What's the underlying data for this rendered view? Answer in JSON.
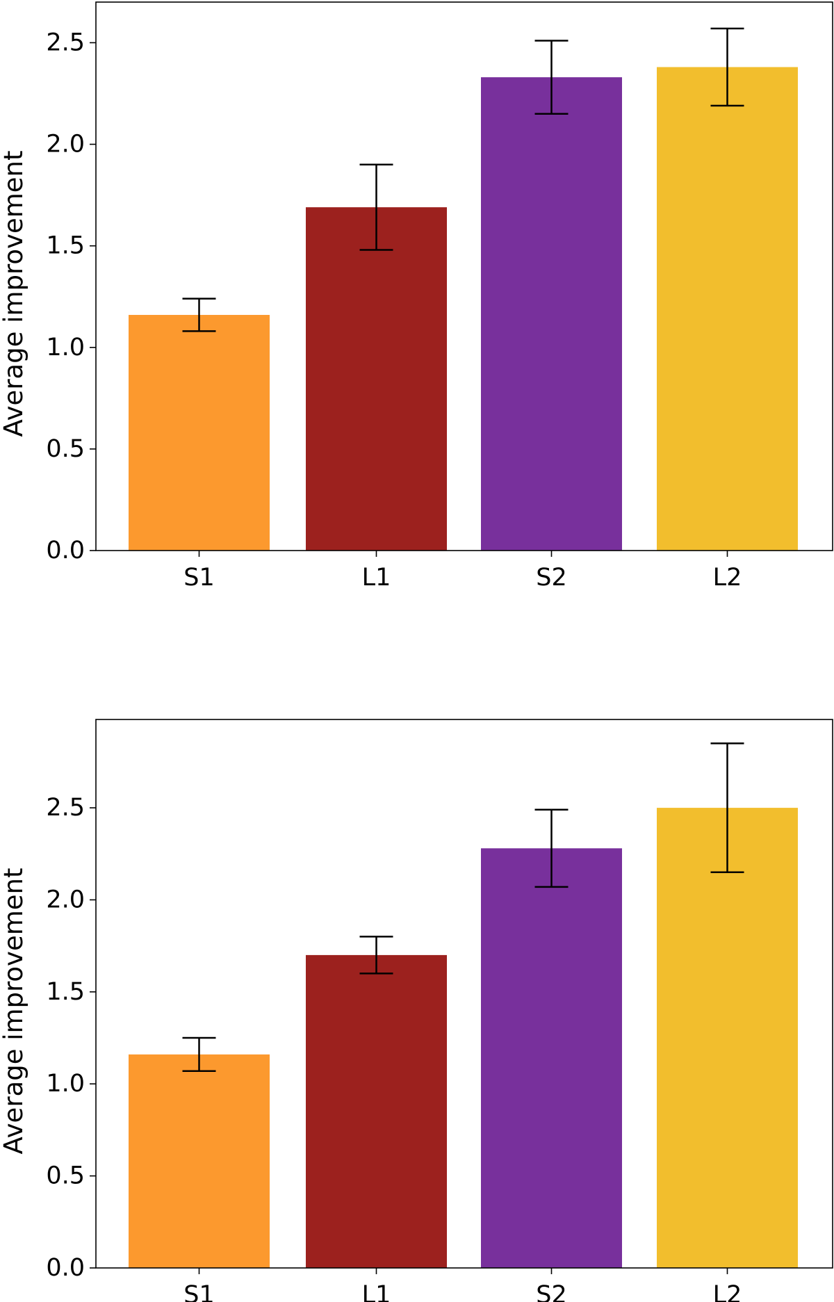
{
  "chart_data": [
    {
      "type": "bar",
      "title": "",
      "xlabel": "",
      "ylabel": "Average improvement",
      "categories": [
        "S1",
        "L1",
        "S2",
        "L2"
      ],
      "values": [
        1.16,
        1.69,
        2.33,
        2.38
      ],
      "errors": [
        0.08,
        0.21,
        0.18,
        0.19
      ],
      "colors": [
        "#FC992E",
        "#9C211E",
        "#78309C",
        "#F2BE2D"
      ],
      "ylim": [
        0,
        2.7
      ],
      "yticks": [
        0.0,
        0.5,
        1.0,
        1.5,
        2.0,
        2.5
      ],
      "ytick_labels": [
        "0.0",
        "0.5",
        "1.0",
        "1.5",
        "2.0",
        "2.5"
      ],
      "grid": false,
      "legend": "none"
    },
    {
      "type": "bar",
      "title": "",
      "xlabel": "",
      "ylabel": "Average improvement",
      "categories": [
        "S1",
        "L1",
        "S2",
        "L2"
      ],
      "values": [
        1.16,
        1.7,
        2.28,
        2.5
      ],
      "errors": [
        0.09,
        0.1,
        0.21,
        0.35
      ],
      "colors": [
        "#FC992E",
        "#9C211E",
        "#78309C",
        "#F2BE2D"
      ],
      "ylim": [
        0,
        2.98
      ],
      "yticks": [
        0.0,
        0.5,
        1.0,
        1.5,
        2.0,
        2.5
      ],
      "ytick_labels": [
        "0.0",
        "0.5",
        "1.0",
        "1.5",
        "2.0",
        "2.5"
      ],
      "grid": false,
      "legend": "none"
    }
  ]
}
